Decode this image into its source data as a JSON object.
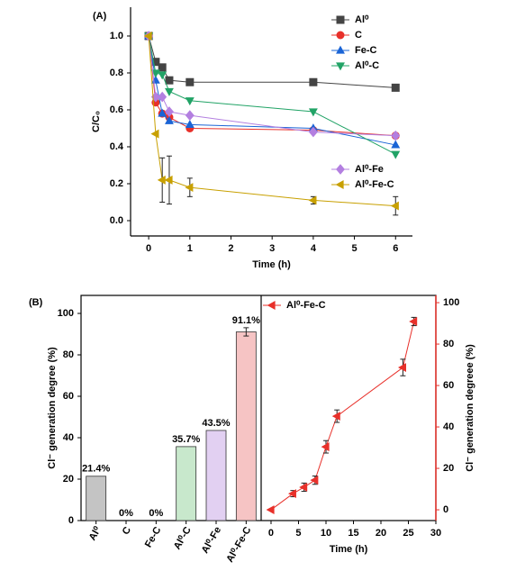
{
  "chart_data": [
    {
      "type": "line",
      "panel_label": "(A)",
      "xlabel": "Time (h)",
      "ylabel": "C/C₀",
      "x": [
        0,
        0.17,
        0.33,
        0.5,
        1,
        4,
        6
      ],
      "xlim": [
        -0.44,
        6.41
      ],
      "xticks": [
        0,
        1,
        2,
        3,
        4,
        5,
        6
      ],
      "ylim": [
        -0.083,
        1.156
      ],
      "yticks": [
        {
          "value": 0,
          "label": "0.0"
        },
        0.2,
        0.4,
        0.6,
        0.8,
        {
          "value": 1,
          "label": "1.0"
        }
      ],
      "series": [
        {
          "name": "Al⁰",
          "color": "#444444",
          "marker": "square",
          "values": [
            1.0,
            0.86,
            0.83,
            0.76,
            0.75,
            0.75,
            0.72
          ]
        },
        {
          "name": "C",
          "color": "#e8302a",
          "marker": "circle",
          "values": [
            1.0,
            0.64,
            0.58,
            0.56,
            0.5,
            0.49,
            0.46
          ]
        },
        {
          "name": "Fe-C",
          "color": "#1a64d6",
          "marker": "triangle-up",
          "values": [
            1.0,
            0.76,
            0.58,
            0.54,
            0.52,
            0.5,
            0.41
          ]
        },
        {
          "name": "Al⁰-C",
          "color": "#21a366",
          "marker": "triangle-down",
          "values": [
            1.0,
            0.8,
            0.79,
            0.7,
            0.65,
            0.59,
            0.36
          ]
        },
        {
          "name": "Al⁰-Fe",
          "color": "#b37fe0",
          "marker": "diamond",
          "values": [
            1.0,
            0.67,
            0.67,
            0.59,
            0.57,
            0.48,
            0.46
          ]
        },
        {
          "name": "Al⁰-Fe-C",
          "color": "#c8a000",
          "marker": "triangle-left",
          "values": [
            1.0,
            0.47,
            0.22,
            0.22,
            0.18,
            0.11,
            0.08
          ],
          "errors": [
            null,
            null,
            0.12,
            0.13,
            0.05,
            0.02,
            0.05
          ]
        }
      ]
    },
    {
      "type": "bar",
      "panel_label": "(B)",
      "ylabel": "Cl⁻ generation degree (%)",
      "categories": [
        "Al⁰",
        "C",
        "Fe-C",
        "Al⁰-C",
        "Al⁰-Fe",
        "Al⁰-Fe-C"
      ],
      "values": [
        21.4,
        0,
        0,
        35.7,
        43.5,
        91.1
      ],
      "value_labels": [
        "21.4%",
        "0%",
        "0%",
        "35.7%",
        "43.5%",
        "91.1%"
      ],
      "errors": [
        null,
        null,
        null,
        null,
        null,
        2
      ],
      "colors": [
        "#c4c4c4",
        "#c4c4c4",
        "#c4c4c4",
        "#c8e8cc",
        "#e2d0f2",
        "#f6c4c4"
      ],
      "ylim": [
        0,
        108.7
      ],
      "yticks": [
        0,
        20,
        40,
        60,
        80,
        100
      ]
    },
    {
      "type": "line",
      "xlabel": "Time (h)",
      "y2label": "Cl⁻ generation degreee (%)",
      "xlim": [
        -1.8,
        30
      ],
      "xticks": [
        0,
        5,
        10,
        15,
        20,
        25,
        30
      ],
      "y2lim": [
        -5.2,
        103.5
      ],
      "y2ticks": [
        0,
        20,
        40,
        60,
        80,
        100
      ],
      "x": [
        0,
        4,
        6,
        8,
        10,
        12,
        24,
        26
      ],
      "series": [
        {
          "name": "Al⁰-Fe-C",
          "color": "#e8302a",
          "marker": "triangle-left",
          "axis": "y2",
          "values": [
            0,
            7.8,
            10.9,
            14.3,
            30.4,
            45.2,
            68.7,
            90.9
          ],
          "errors": [
            null,
            1.5,
            2,
            2,
            3,
            3,
            4,
            2
          ]
        }
      ]
    }
  ]
}
